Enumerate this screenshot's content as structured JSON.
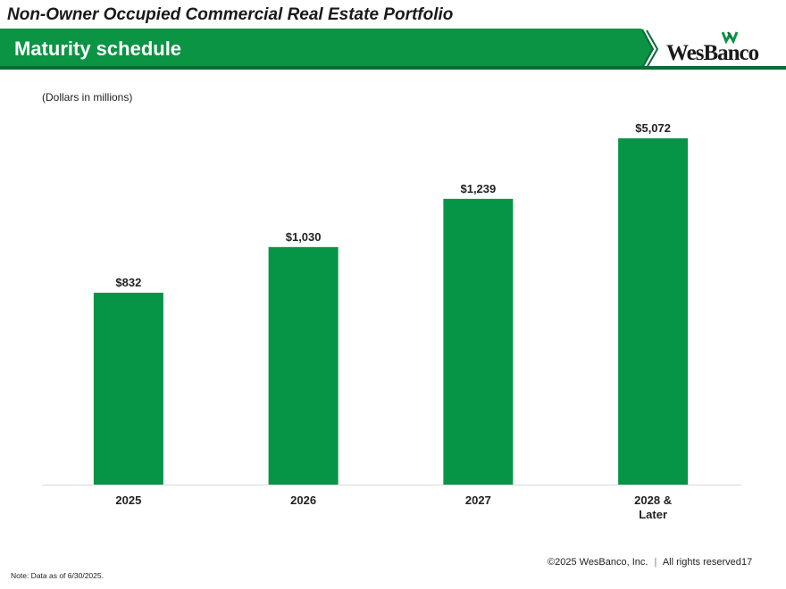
{
  "header": {
    "top_title": "Non-Owner Occupied Commercial Real Estate Portfolio",
    "banner_title": "Maturity schedule",
    "logo_text": "WesBanco"
  },
  "colors": {
    "brand_green": "#069447",
    "banner_green": "#0a9444",
    "dark_green": "#0b6b34"
  },
  "chart_data": {
    "type": "bar",
    "title": "",
    "subtitle": "(Dollars in millions)",
    "categories": [
      "2025",
      "2026",
      "2027",
      "2028 & Later"
    ],
    "category_lines": [
      [
        "2025"
      ],
      [
        "2026"
      ],
      [
        "2027"
      ],
      [
        "2028 &",
        "Later"
      ]
    ],
    "values": [
      832,
      1030,
      1239,
      5072
    ],
    "value_labels": [
      "$832",
      "$1,030",
      "$1,239",
      "$5,072"
    ],
    "xlabel": "",
    "ylabel": "",
    "grid": false,
    "legend": "none"
  },
  "footer": {
    "copyright": "©2025 WesBanco, Inc.",
    "separator": "|",
    "rights": "All rights reserved",
    "page_number": "17",
    "note": "Note: Data as of 6/30/2025."
  }
}
